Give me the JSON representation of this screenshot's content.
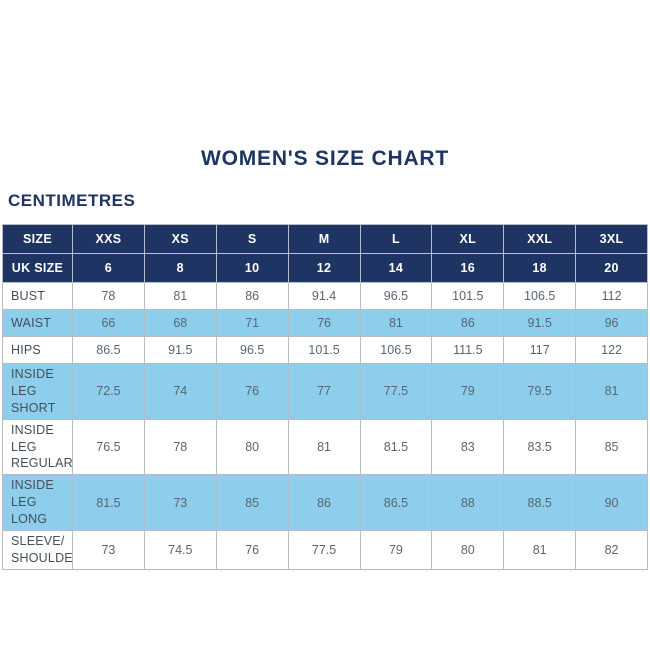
{
  "page": {
    "title": "WOMEN'S SIZE CHART",
    "unit_label": "CENTIMETRES"
  },
  "colors": {
    "navy": "#1e3563",
    "light_blue": "#8cceeb",
    "border": "#b7bcc4",
    "value_text": "#5b6570",
    "label_text": "#454f5a"
  },
  "chart_data": {
    "type": "table",
    "title": "WOMEN'S SIZE CHART",
    "units": "CENTIMETRES",
    "header": {
      "size_label": "SIZE",
      "sizes": [
        "XXS",
        "XS",
        "S",
        "M",
        "L",
        "XL",
        "XXL",
        "3XL"
      ],
      "uk_size_label": "UK SIZE",
      "uk_sizes": [
        "6",
        "8",
        "10",
        "12",
        "14",
        "16",
        "18",
        "20"
      ]
    },
    "rows": [
      {
        "label": "BUST",
        "values": [
          "78",
          "81",
          "86",
          "91.4",
          "96.5",
          "101.5",
          "106.5",
          "112"
        ],
        "shaded": false
      },
      {
        "label": "WAIST",
        "values": [
          "66",
          "68",
          "71",
          "76",
          "81",
          "86",
          "91.5",
          "96"
        ],
        "shaded": true
      },
      {
        "label": "HIPS",
        "values": [
          "86.5",
          "91.5",
          "96.5",
          "101.5",
          "106.5",
          "111.5",
          "117",
          "122"
        ],
        "shaded": false
      },
      {
        "label": "INSIDE LEG\nSHORT",
        "values": [
          "72.5",
          "74",
          "76",
          "77",
          "77.5",
          "79",
          "79.5",
          "81"
        ],
        "shaded": true
      },
      {
        "label": "INSIDE LEG\nREGULAR",
        "values": [
          "76.5",
          "78",
          "80",
          "81",
          "81.5",
          "83",
          "83.5",
          "85"
        ],
        "shaded": false
      },
      {
        "label": "INSIDE LEG\nLONG",
        "values": [
          "81.5",
          "73",
          "85",
          "86",
          "86.5",
          "88",
          "88.5",
          "90"
        ],
        "shaded": true
      },
      {
        "label": "SLEEVE/\nSHOULDER",
        "values": [
          "73",
          "74.5",
          "76",
          "77.5",
          "79",
          "80",
          "81",
          "82"
        ],
        "shaded": false
      }
    ]
  }
}
